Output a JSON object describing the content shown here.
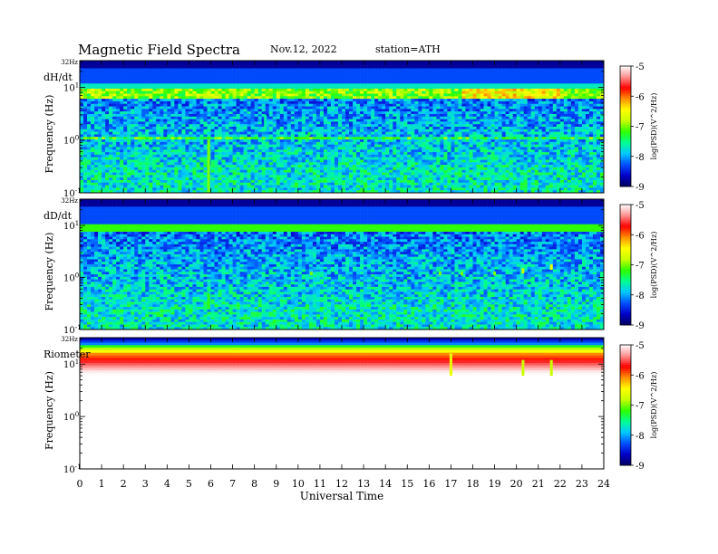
{
  "header": {
    "title": "Magnetic  Field  Spectra",
    "date": "Nov.12, 2022",
    "station": "station=ATH"
  },
  "chart_data": {
    "type": "heatmap",
    "xlabel": "Universal Time",
    "x_ticks": [
      "0",
      "1",
      "2",
      "3",
      "4",
      "5",
      "6",
      "7",
      "8",
      "9",
      "10",
      "11",
      "12",
      "13",
      "14",
      "15",
      "16",
      "17",
      "18",
      "19",
      "20",
      "21",
      "22",
      "23",
      "24"
    ],
    "xlim": [
      0,
      24
    ],
    "ylim_hz": [
      0.1,
      32
    ],
    "colorbar": {
      "label": "log(PSD)(V^2/Hz)",
      "ticks": [
        "-5",
        "-6",
        "-7",
        "-8",
        "-9"
      ],
      "range": [
        -9,
        -5
      ],
      "colors": [
        "#000060",
        "#0000c8",
        "#0050ff",
        "#00c8ff",
        "#00ff90",
        "#30ff00",
        "#c8ff00",
        "#ffff00",
        "#ff9000",
        "#ff0000",
        "#ff9090",
        "#ffffff"
      ]
    },
    "panels": [
      {
        "label": "dH/dt",
        "ylabel": "Frequency (Hz)",
        "top_tick": "32Hz",
        "y_ticks": [
          {
            "base": "10",
            "exp": "1"
          },
          {
            "base": "10",
            "exp": "0"
          },
          {
            "base": "10",
            "exp": "-1"
          }
        ],
        "profile": "dH",
        "events": [
          {
            "t": 5.9,
            "f0": 0.1,
            "f1": 1.0,
            "v": -7.0
          },
          {
            "t": 10.5,
            "f0": 1.2,
            "f1": 1.4,
            "v": -7.3
          },
          {
            "t": 11.0,
            "f0": 1.2,
            "f1": 1.3,
            "v": -7.5
          },
          {
            "t": 8.5,
            "f0": 1.5,
            "f1": 3.0,
            "v": -7.6
          }
        ]
      },
      {
        "label": "dD/dt",
        "ylabel": "Frequency (Hz)",
        "top_tick": "32Hz",
        "y_ticks": [
          {
            "base": "10",
            "exp": "1"
          },
          {
            "base": "10",
            "exp": "0"
          },
          {
            "base": "10",
            "exp": "-1"
          }
        ],
        "profile": "dD",
        "events": [
          {
            "t": 5.9,
            "f0": 0.25,
            "f1": 0.5,
            "v": -7.2
          },
          {
            "t": 10.6,
            "f0": 1.1,
            "f1": 1.3,
            "v": -7.0
          },
          {
            "t": 16.5,
            "f0": 1.1,
            "f1": 1.3,
            "v": -7.0
          },
          {
            "t": 17.5,
            "f0": 1.1,
            "f1": 1.3,
            "v": -7.0
          },
          {
            "t": 19.0,
            "f0": 1.1,
            "f1": 1.3,
            "v": -7.0
          },
          {
            "t": 20.3,
            "f0": 1.2,
            "f1": 1.5,
            "v": -6.8
          },
          {
            "t": 21.6,
            "f0": 1.4,
            "f1": 1.8,
            "v": -6.6
          }
        ]
      },
      {
        "label": "Riometer",
        "ylabel": "Frequency (Hz)",
        "top_tick": "32Hz",
        "y_ticks": [
          {
            "base": "10",
            "exp": "1"
          },
          {
            "base": "10",
            "exp": "0"
          },
          {
            "base": "10",
            "exp": "-1"
          }
        ],
        "profile": "rio",
        "events": [
          {
            "t": 17.0,
            "f0": 6,
            "f1": 16,
            "v": -6.6
          },
          {
            "t": 20.3,
            "f0": 6,
            "f1": 12,
            "v": -6.8
          },
          {
            "t": 21.6,
            "f0": 6,
            "f1": 12,
            "v": -6.8
          }
        ]
      }
    ]
  }
}
